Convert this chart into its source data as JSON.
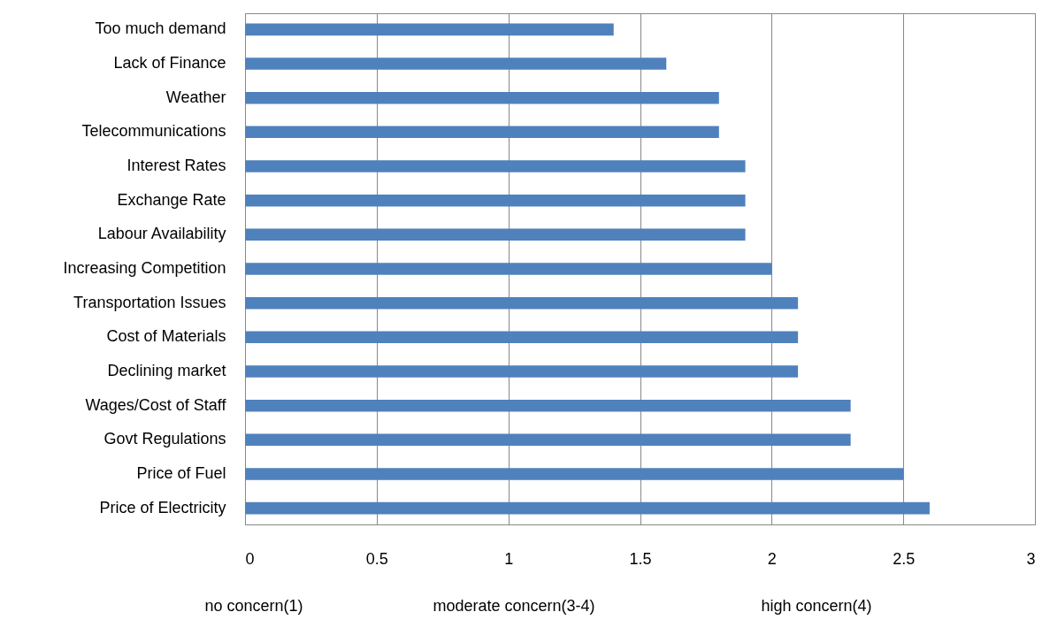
{
  "chart_data": {
    "type": "bar",
    "orientation": "horizontal",
    "categories": [
      "Too much demand",
      "Lack of Finance",
      "Weather",
      "Telecommunications",
      "Interest Rates",
      "Exchange Rate",
      "Labour Availability",
      "Increasing Competition",
      "Transportation Issues",
      "Cost of Materials",
      "Declining market",
      "Wages/Cost of Staff",
      "Govt Regulations",
      "Price  of Fuel",
      "Price of Electricity"
    ],
    "values": [
      1.4,
      1.6,
      1.8,
      1.8,
      1.9,
      1.9,
      1.9,
      2.0,
      2.1,
      2.1,
      2.1,
      2.3,
      2.3,
      2.5,
      2.6
    ],
    "color": "#4f81bd",
    "xlim": [
      0,
      3
    ],
    "xticks": [
      0,
      0.5,
      1,
      1.5,
      2,
      2.5,
      3
    ],
    "grid": "x",
    "annotations": [
      "no concern(1)",
      "moderate concern(3-4)",
      "high concern(4)"
    ]
  }
}
